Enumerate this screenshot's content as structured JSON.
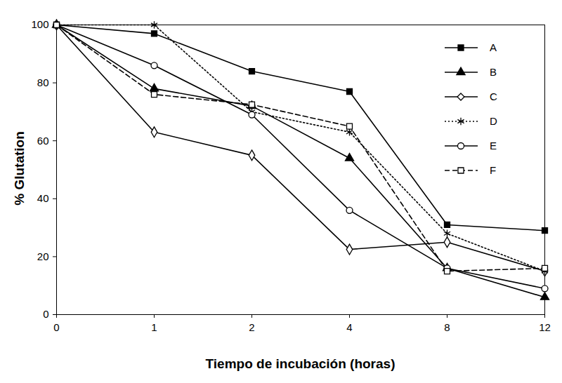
{
  "chart_data": {
    "type": "line",
    "x_label": "Tiempo de incubación (horas)",
    "y_label": "% Glutation",
    "categories": [
      "0",
      "1",
      "2",
      "4",
      "8",
      "12"
    ],
    "ylim": [
      0,
      100
    ],
    "yticks": [
      0,
      20,
      40,
      60,
      80,
      100
    ],
    "grid": false,
    "legend": "upper right",
    "series": [
      {
        "name": "A",
        "color": "#000000",
        "marker": "square",
        "line_style": "solid",
        "values": [
          100,
          97,
          84,
          77,
          31,
          29
        ]
      },
      {
        "name": "B",
        "color": "#000000",
        "marker": "triangle",
        "line_style": "solid",
        "values": [
          100,
          78,
          72,
          54,
          16,
          6
        ]
      },
      {
        "name": "C",
        "color": "#000000",
        "marker": "diamond-open",
        "line_style": "solid",
        "values": [
          100,
          63,
          55,
          22.5,
          25,
          15
        ]
      },
      {
        "name": "D",
        "color": "#000000",
        "marker": "asterisk",
        "line_style": "dotted",
        "values": [
          100,
          100,
          70,
          63,
          28,
          15
        ]
      },
      {
        "name": "E",
        "color": "#000000",
        "marker": "circle-open",
        "line_style": "solid",
        "values": [
          100,
          86,
          69,
          36,
          16,
          9
        ]
      },
      {
        "name": "F",
        "color": "#000000",
        "marker": "square-open",
        "line_style": "dashed",
        "values": [
          100,
          76,
          72.5,
          65,
          15,
          16
        ]
      }
    ]
  }
}
